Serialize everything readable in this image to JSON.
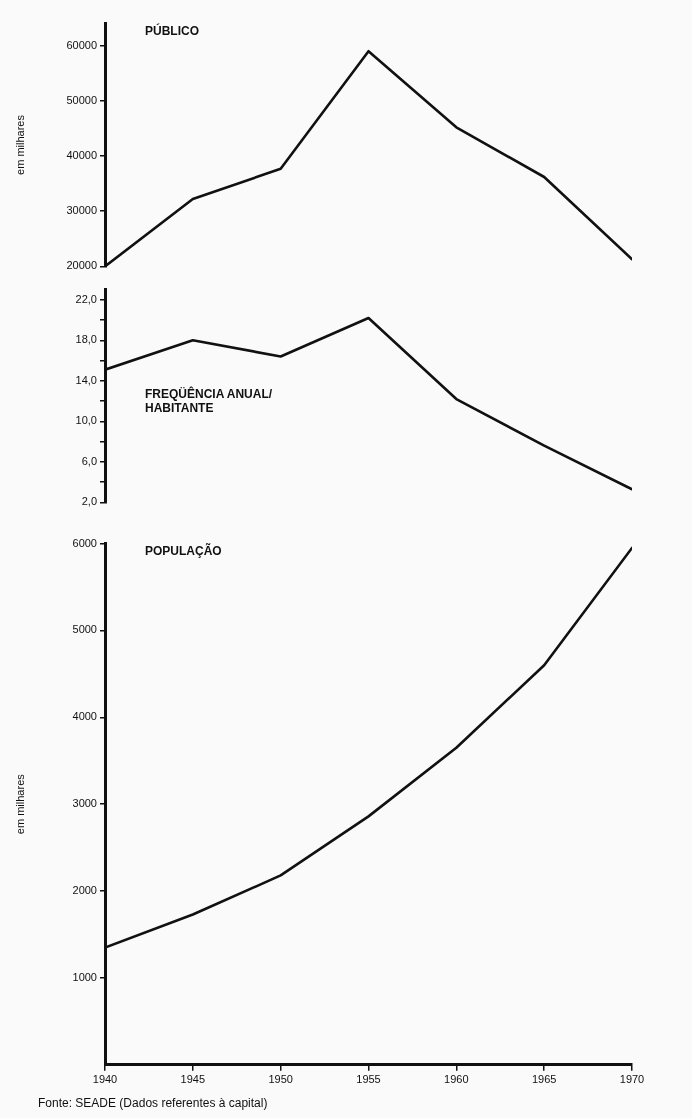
{
  "chart_data": [
    {
      "type": "line",
      "title": "PÚBLICO",
      "ylabel": "em milhares",
      "x": [
        1940,
        1945,
        1950,
        1955,
        1960,
        1965,
        1970
      ],
      "xlim": [
        1940,
        1970
      ],
      "ylim": [
        20000,
        64000
      ],
      "yticks": [
        20000,
        30000,
        40000,
        50000,
        60000
      ],
      "tick_labels": "y",
      "grid": false,
      "legend": false,
      "marker": "none",
      "line_style": "solid",
      "series": [
        {
          "color": "#111111",
          "values": [
            20000,
            32200,
            37700,
            59000,
            45200,
            36200,
            21300
          ]
        }
      ]
    },
    {
      "type": "line",
      "title": "FREQÜÊNCIA ANUAL/\nHABITANTE",
      "x": [
        1940,
        1945,
        1950,
        1955,
        1960,
        1965,
        1970
      ],
      "xlim": [
        1940,
        1970
      ],
      "ylim": [
        2,
        23
      ],
      "yticks": [
        {
          "value": 2,
          "label": "2,0"
        },
        {
          "value": 4,
          "label": null
        },
        {
          "value": 6,
          "label": "6,0"
        },
        {
          "value": 8,
          "label": null
        },
        {
          "value": 10,
          "label": "10,0"
        },
        {
          "value": 12,
          "label": null
        },
        {
          "value": 14,
          "label": "14,0"
        },
        {
          "value": 16,
          "label": null
        },
        {
          "value": 18,
          "label": "18,0"
        },
        {
          "value": 20,
          "label": null
        },
        {
          "value": 22,
          "label": "22,0"
        }
      ],
      "tick_labels": "y",
      "grid": false,
      "legend": false,
      "marker": "none",
      "line_style": "solid",
      "series": [
        {
          "color": "#111111",
          "values": [
            15.1,
            18.0,
            16.4,
            20.2,
            12.2,
            7.6,
            3.3
          ]
        }
      ]
    },
    {
      "type": "line",
      "title": "POPULAÇÃO",
      "ylabel": "em milhares",
      "x": [
        1940,
        1945,
        1950,
        1955,
        1960,
        1965,
        1970
      ],
      "xlim": [
        1940,
        1970
      ],
      "xticks": [
        1940,
        1945,
        1950,
        1955,
        1960,
        1965,
        1970
      ],
      "ylim": [
        0,
        6000
      ],
      "yticks": [
        1000,
        2000,
        3000,
        4000,
        5000,
        6000
      ],
      "grid": false,
      "legend": false,
      "marker": "none",
      "line_style": "solid",
      "annotations": [
        "Fonte: SEADE (Dados referentes à capital)"
      ],
      "series": [
        {
          "color": "#111111",
          "values": [
            1350,
            1730,
            2180,
            2860,
            3650,
            4600,
            5950
          ]
        }
      ]
    }
  ]
}
